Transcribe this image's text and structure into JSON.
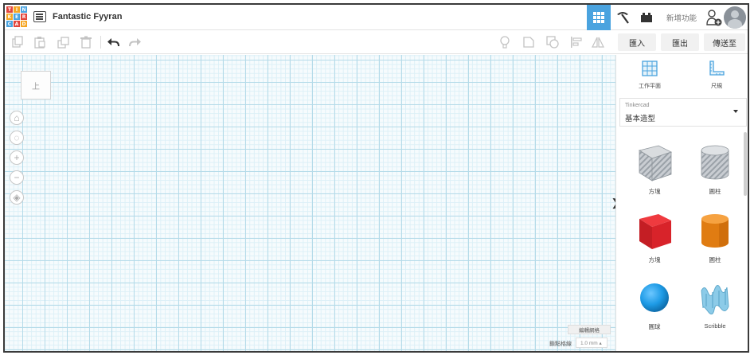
{
  "app": {
    "logo_letters": [
      "T",
      "I",
      "N",
      "K",
      "E",
      "R",
      "C",
      "A",
      "D"
    ],
    "logo_colors": [
      "#e2453c",
      "#f5a623",
      "#4aa3df",
      "#f5a623",
      "#4aa3df",
      "#e2453c",
      "#4aa3df",
      "#e2453c",
      "#f5a623"
    ],
    "design_title": "Fantastic Fyyran"
  },
  "topbar": {
    "view_buttons": [
      {
        "name": "3d-design-view",
        "icon": "grid-icon",
        "active": true
      },
      {
        "name": "circuits-view",
        "icon": "pickaxe-icon",
        "active": false
      },
      {
        "name": "bricks-view",
        "icon": "bricks-icon",
        "active": false
      }
    ],
    "new_features_label": "新增功能",
    "accent_color": "#4aa3df"
  },
  "toolbar": {
    "left_tools": [
      "copy-icon",
      "paste-icon",
      "duplicate-icon",
      "delete-icon",
      "undo-icon",
      "redo-icon"
    ],
    "right_tools": [
      "light-bulb-icon",
      "group-icon",
      "ungroup-icon",
      "align-icon",
      "mirror-icon"
    ],
    "import_label": "匯入",
    "export_label": "匯出",
    "send_to_label": "傳送至"
  },
  "workplane": {
    "viewcube_label": "上",
    "nav_controls": [
      "home-icon",
      "fit-view-icon",
      "zoom-in-icon",
      "zoom-out-icon",
      "ortho-view-icon"
    ],
    "edit_grid_label": "編輯網格",
    "snap_grid_label": "鎖點格線",
    "snap_grid_value": "1.0 mm ▴",
    "collapse_glyph": "❯"
  },
  "panel": {
    "workplane_label": "工作平面",
    "ruler_label": "尺規",
    "library_source": "Tinkercad",
    "library_name": "基本造型",
    "shapes": [
      {
        "label": "方塊",
        "icon": "hole-box-icon"
      },
      {
        "label": "圓柱",
        "icon": "hole-cylinder-icon"
      },
      {
        "label": "方塊",
        "icon": "red-box-icon",
        "color": "#d8232a"
      },
      {
        "label": "圓柱",
        "icon": "orange-cylinder-icon",
        "color": "#f08c1e"
      },
      {
        "label": "圓球",
        "icon": "blue-sphere-icon",
        "color": "#1e9be6"
      },
      {
        "label": "Scribble",
        "icon": "scribble-icon",
        "color": "#6fb7d9"
      }
    ]
  }
}
